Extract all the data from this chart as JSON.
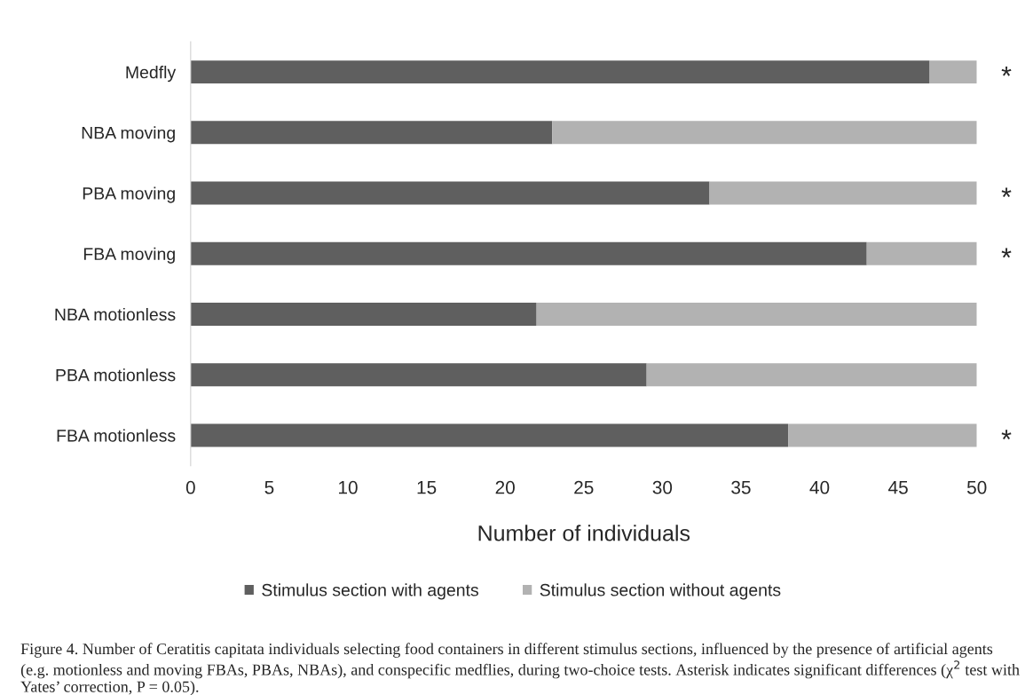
{
  "chart_data": {
    "type": "bar",
    "orientation": "horizontal",
    "stacked": true,
    "categories": [
      "Medfly",
      "NBA moving",
      "PBA moving",
      "FBA moving",
      "NBA motionless",
      "PBA motionless",
      "FBA motionless"
    ],
    "series": [
      {
        "name": "Stimulus section with agents",
        "color": "#5f5f5f",
        "values": [
          47,
          23,
          33,
          43,
          22,
          29,
          38
        ]
      },
      {
        "name": "Stimulus section without agents",
        "color": "#b2b2b2",
        "values": [
          3,
          27,
          17,
          7,
          28,
          21,
          12
        ],
        "value_labels": [
          "*",
          null,
          "*",
          "*",
          null,
          null,
          "*"
        ]
      }
    ],
    "xlabel": "Number of individuals",
    "xlim": [
      0,
      50
    ],
    "xticks": [
      0,
      5,
      10,
      15,
      20,
      25,
      30,
      35,
      40,
      45,
      50
    ],
    "grid": false,
    "legend": "bottom",
    "annotations": [
      "Figure 4. Number of Ceratitis capitata individuals selecting food containers in different stimulus sections, influenced by the presence of artificial agents (e.g. motionless and moving FBAs, PBAs, NBAs), and conspecific medflies, during two-choice tests. Asterisk indicates significant differences (χ$^{2}$ test with Yates’ correction, P = 0.05)."
    ]
  }
}
